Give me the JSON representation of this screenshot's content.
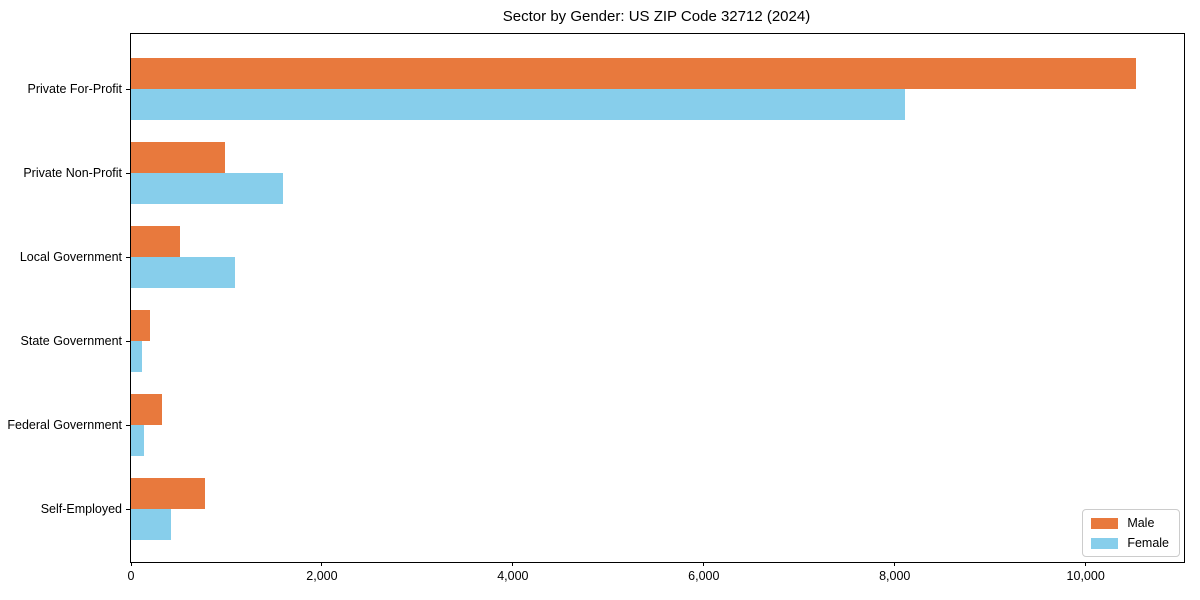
{
  "chart_data": {
    "type": "bar",
    "orientation": "horizontal",
    "title": "Sector by Gender: US ZIP Code 32712 (2024)",
    "categories": [
      "Private For-Profit",
      "Private Non-Profit",
      "Local Government",
      "State Government",
      "Federal Government",
      "Self-Employed"
    ],
    "series": [
      {
        "name": "Male",
        "color": "#E8793D",
        "values": [
          10530,
          980,
          510,
          200,
          320,
          780
        ]
      },
      {
        "name": "Female",
        "color": "#87CEEB",
        "values": [
          8110,
          1590,
          1090,
          110,
          140,
          420
        ]
      }
    ],
    "xlabel": "",
    "ylabel": "",
    "xlim": [
      0,
      11030
    ],
    "xticks": [
      0,
      2000,
      4000,
      6000,
      8000,
      10000
    ],
    "xtick_labels": [
      "0",
      "2,000",
      "4,000",
      "6,000",
      "8,000",
      "10,000"
    ],
    "grid": false,
    "legend": {
      "position": "lower-right",
      "entries": [
        "Male",
        "Female"
      ]
    },
    "background_color": "#ffffff",
    "spine_color": "#000000"
  }
}
